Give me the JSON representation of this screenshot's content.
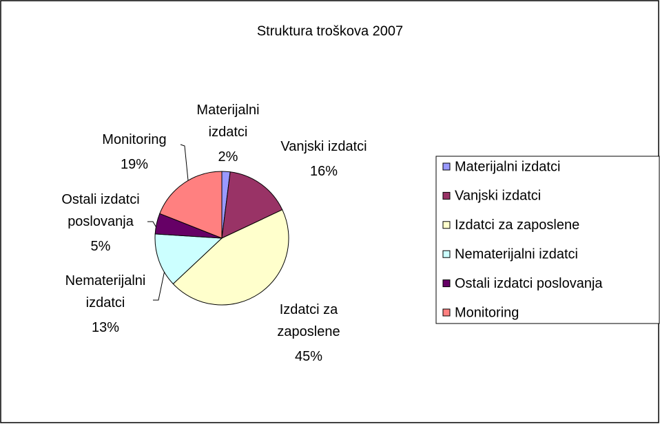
{
  "chart_data": {
    "type": "pie",
    "title": "Struktura troškova 2007",
    "categories": [
      "Materijalni izdatci",
      "Vanjski izdatci",
      "Izdatci za zaposlene",
      "Nematerijalni izdatci",
      "Ostali izdatci poslovanja",
      "Monitoring"
    ],
    "values": [
      2,
      16,
      45,
      13,
      5,
      19
    ],
    "value_labels": [
      "2%",
      "16%",
      "45%",
      "13%",
      "5%",
      "19%"
    ],
    "colors": [
      "#9999FF",
      "#993366",
      "#FFFFCC",
      "#CCFFFF",
      "#660066",
      "#FF8080"
    ],
    "legend": "right"
  }
}
